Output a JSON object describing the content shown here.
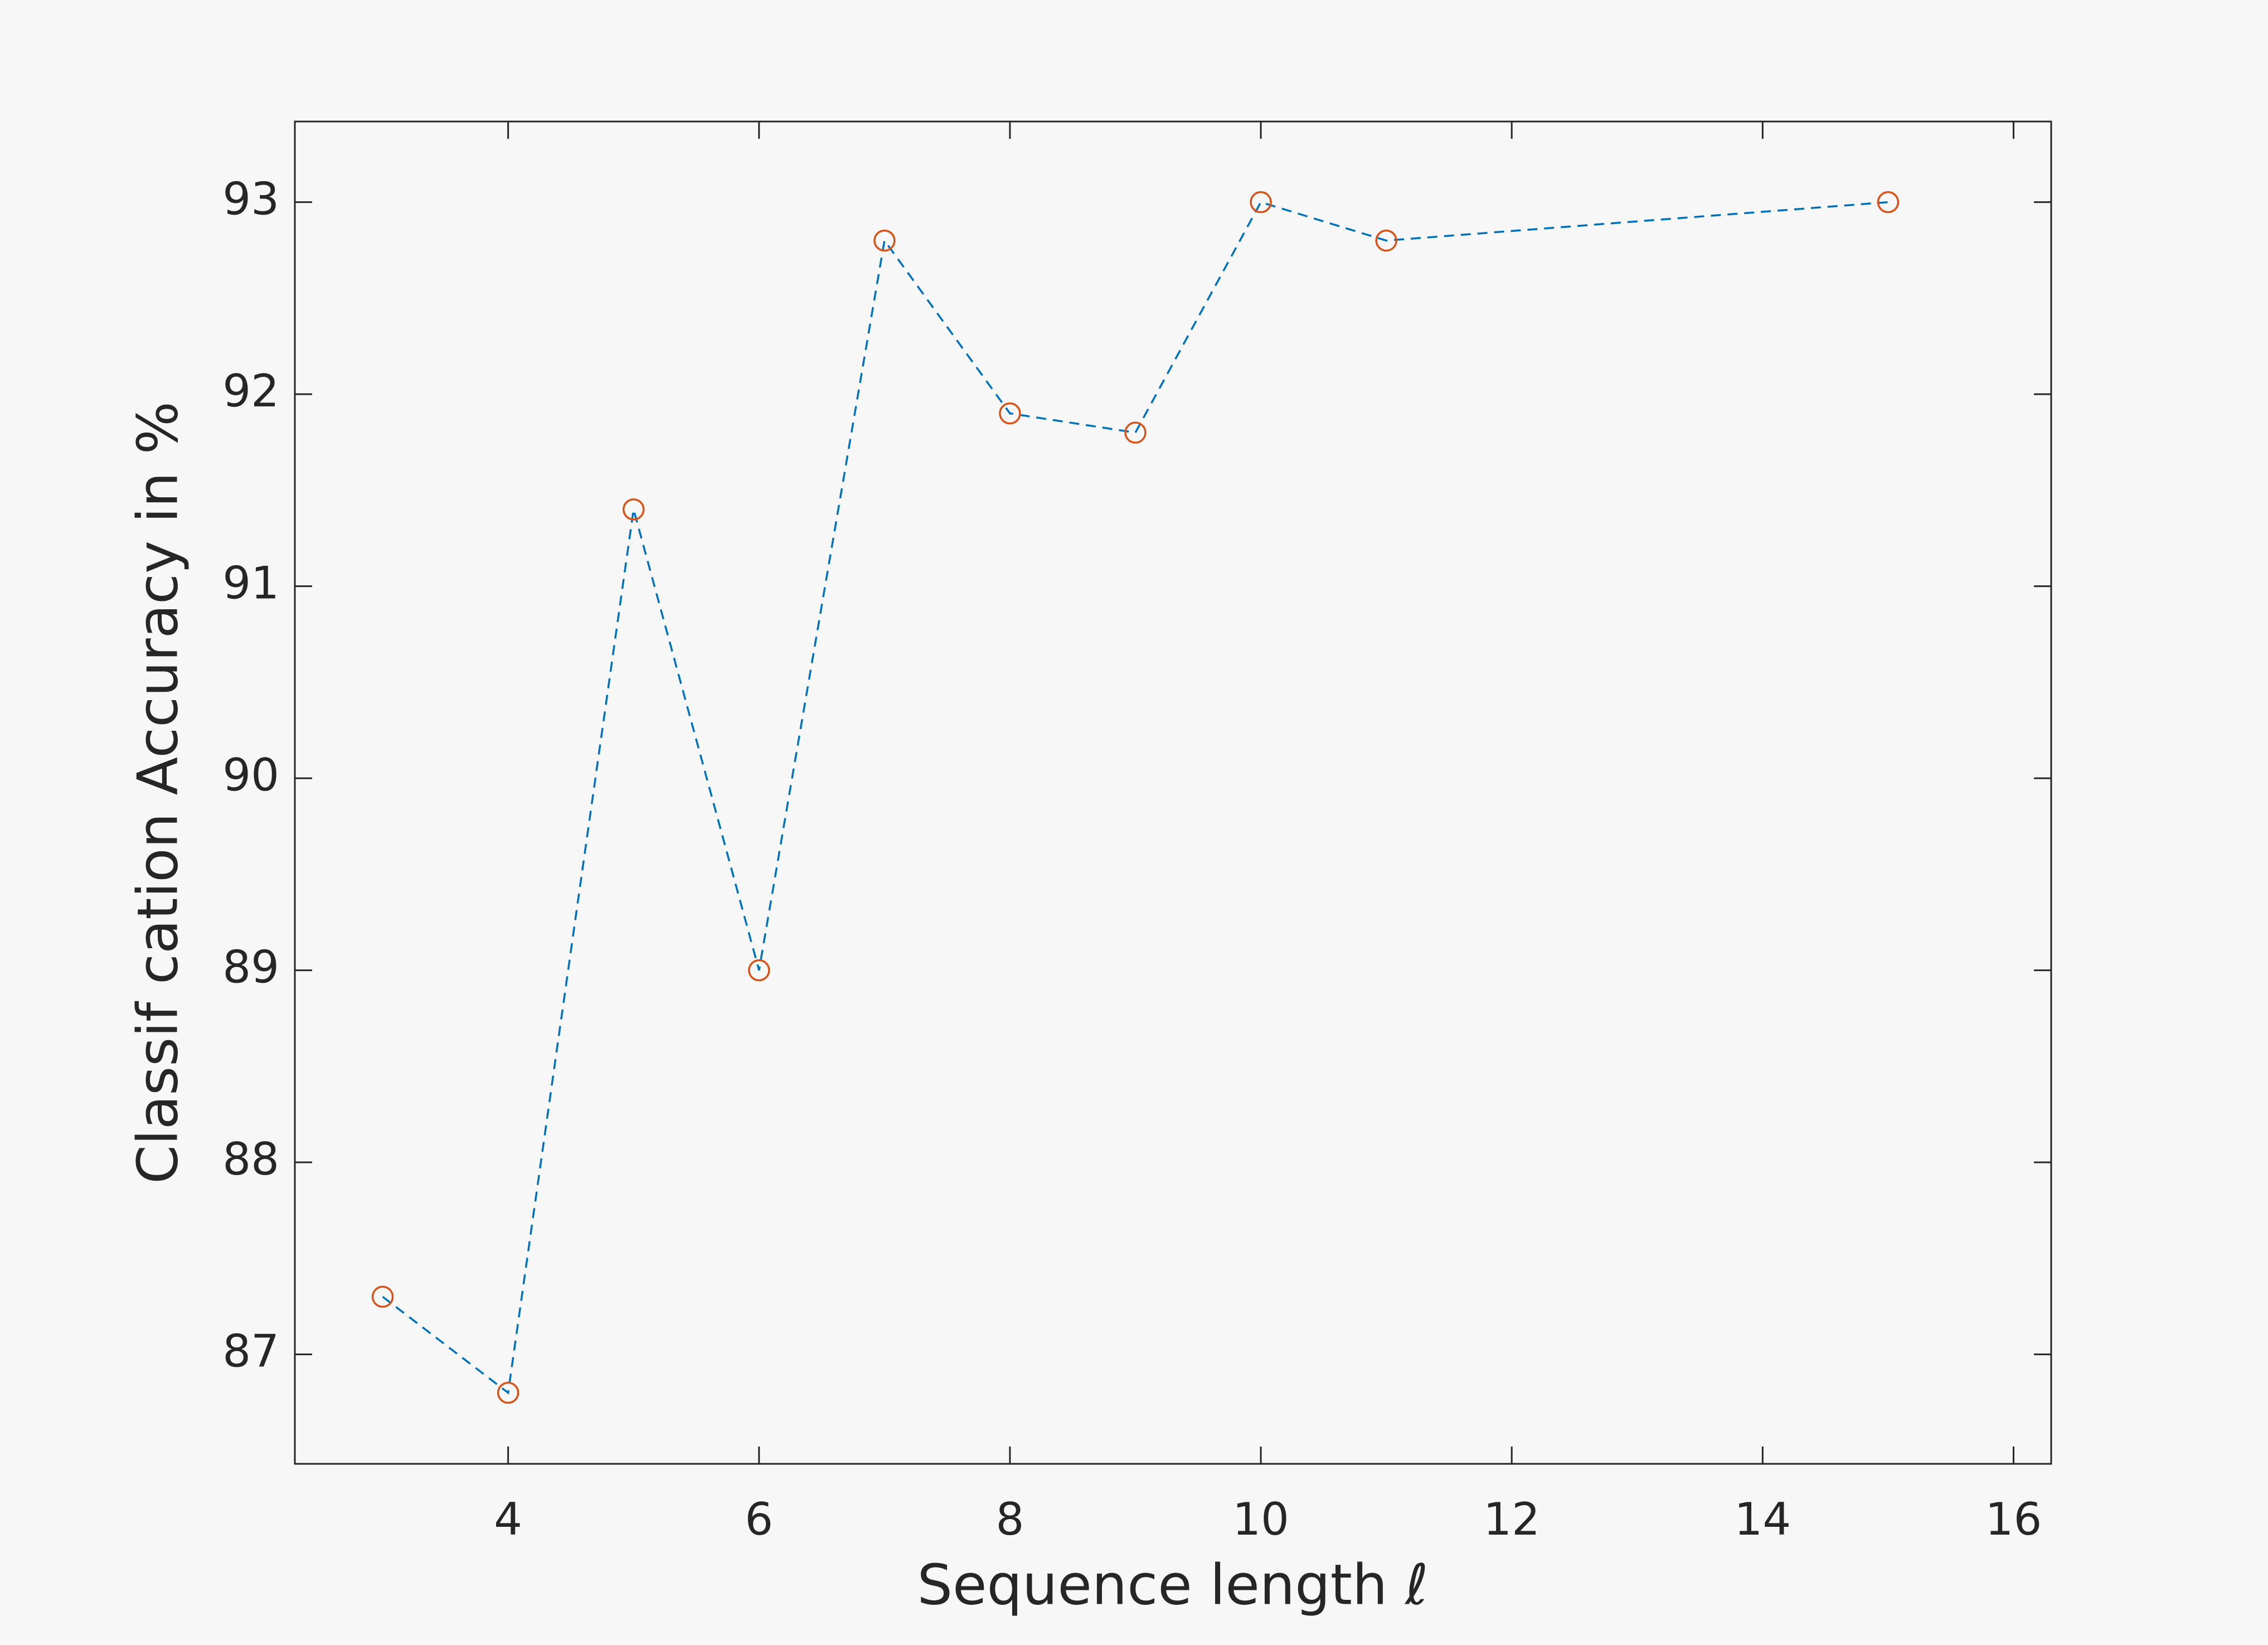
{
  "chart_data": {
    "type": "line",
    "xlabel": "Sequence length ℓ",
    "ylabel": "Classif cation Accuracy in %",
    "x": [
      3,
      4,
      5,
      6,
      7,
      8,
      9,
      10,
      11,
      15
    ],
    "series": [
      {
        "name": "Accuracy",
        "line_color": "#0072bd",
        "marker_color": "#d95319",
        "values": [
          87.3,
          86.8,
          91.4,
          89.0,
          92.8,
          91.9,
          91.8,
          93.0,
          92.8,
          93.0
        ]
      }
    ],
    "xlim": [
      2.3,
      16.3
    ],
    "ylim": [
      86.43,
      93.42
    ],
    "xticks": [
      4,
      6,
      8,
      10,
      12,
      14,
      16
    ],
    "yticks": [
      87,
      88,
      89,
      90,
      91,
      92,
      93
    ],
    "grid": false
  }
}
